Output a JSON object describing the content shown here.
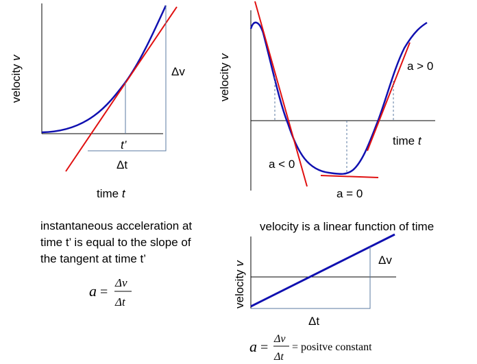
{
  "panel_a": {
    "y_axis_label": "velocity",
    "y_axis_symbol": "v",
    "x_axis_label": "time",
    "x_axis_symbol": "t",
    "tangent_point_label": "t’",
    "delta_v": "Δv",
    "delta_t": "Δt"
  },
  "panel_b": {
    "y_axis_label": "velocity",
    "y_axis_symbol": "v",
    "x_axis_label": "time",
    "x_axis_symbol": "t",
    "label_negative": "a < 0",
    "label_zero": "a = 0",
    "label_positive": "a > 0"
  },
  "panel_c": {
    "caption": "velocity is a linear function of time",
    "y_axis_label": "velocity",
    "y_axis_symbol": "v",
    "delta_v": "Δv",
    "delta_t": "Δt",
    "formula_lhs": "a",
    "formula_eq": "=",
    "formula_num": "Δv",
    "formula_den": "Δt",
    "formula_rhs": "= positve constant"
  },
  "definition": {
    "line1": "instantaneous acceleration at",
    "line2": "time t’ is equal to the slope of",
    "line3": "the tangent at time t’",
    "formula_lhs": "a",
    "formula_eq": "=",
    "formula_num": "Δv",
    "formula_den": "Δt"
  },
  "colors": {
    "curve": "#1010b0",
    "tangent": "#e01010",
    "guide": "#5a7aa0",
    "axis": "#000000"
  }
}
